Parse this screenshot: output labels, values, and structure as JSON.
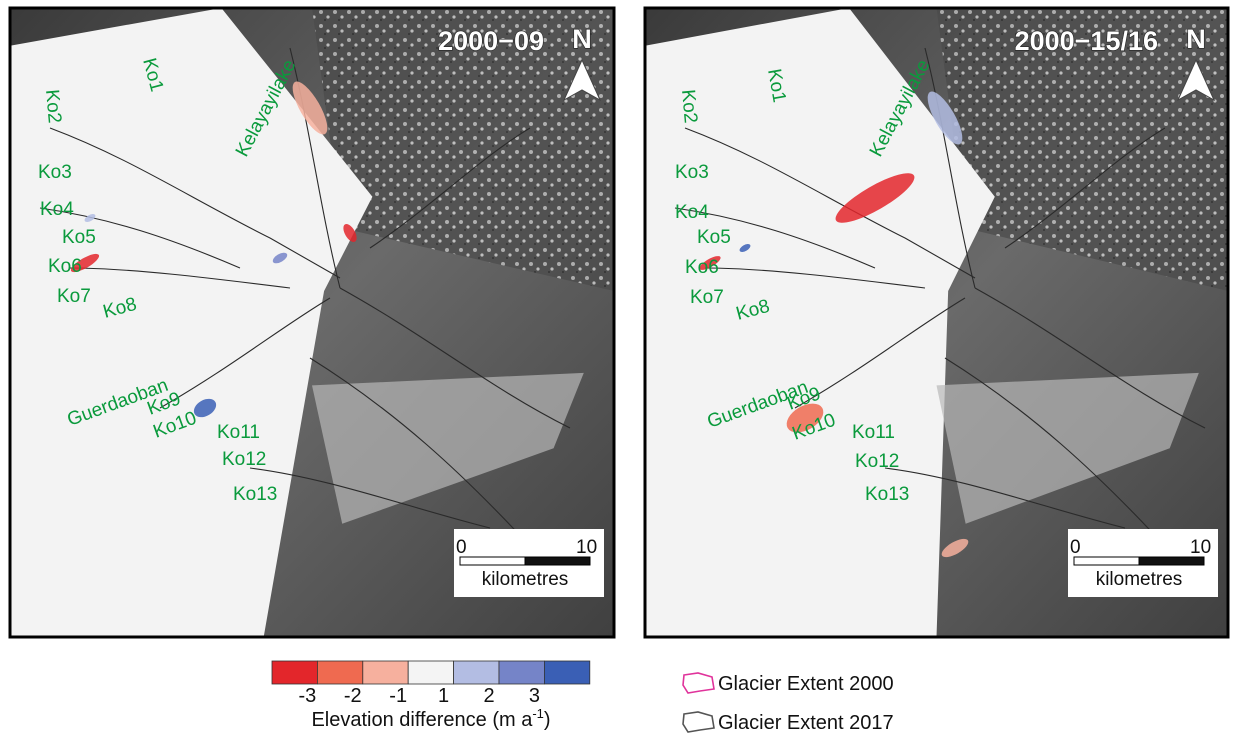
{
  "panels": [
    {
      "title": "2000−09",
      "north": "N",
      "labels": [
        "Ko1",
        "Ko2",
        "Kelayayilake",
        "Ko3",
        "Ko4",
        "Ko5",
        "Ko6",
        "Ko7",
        "Ko8",
        "Guerdaoban",
        "Ko9",
        "Ko10",
        "Ko11",
        "Ko12",
        "Ko13"
      ],
      "scale": {
        "start": "0",
        "end": "10",
        "unit": "kilometres"
      }
    },
    {
      "title": "2000−15/16",
      "north": "N",
      "labels": [
        "Ko1",
        "Ko2",
        "Kelayayilake",
        "Ko3",
        "Ko4",
        "Ko5",
        "Ko6",
        "Ko7",
        "Ko8",
        "Guerdaoban",
        "Ko9",
        "Ko10",
        "Ko11",
        "Ko12",
        "Ko13"
      ],
      "scale": {
        "start": "0",
        "end": "10",
        "unit": "kilometres"
      }
    }
  ],
  "colorbar": {
    "colors": [
      "#e3262b",
      "#ef6a50",
      "#f6b09e",
      "#f4f4f4",
      "#b3bde3",
      "#7584c8",
      "#3a5fb5"
    ],
    "labels": [
      "-3",
      "-2",
      "-1",
      "1",
      "2",
      "3"
    ],
    "title": "Elevation difference (m a",
    "superscript": "-1",
    "title_end": ")"
  },
  "extent_legend": [
    {
      "label": "Glacier Extent 2000",
      "color": "#e0339b"
    },
    {
      "label": "Glacier Extent 2017",
      "color": "#555555"
    }
  ]
}
